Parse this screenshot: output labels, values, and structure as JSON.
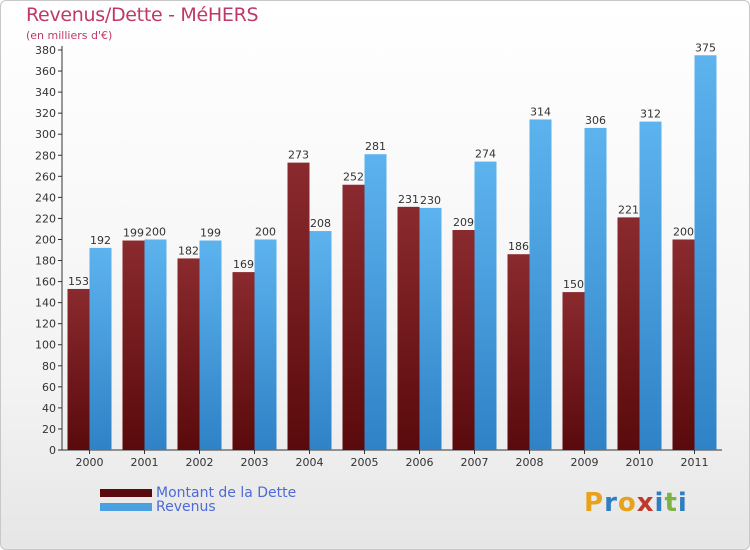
{
  "header": {
    "title": "Revenus/Dette - MéHERS",
    "subtitle": "(en milliers d'€)"
  },
  "legend": {
    "debt_label": "Montant de la Dette",
    "revenue_label": "Revenus"
  },
  "logo": {
    "letters": [
      "P",
      "r",
      "o",
      "x",
      "i",
      "t",
      "i"
    ],
    "colors": [
      "#e8a11a",
      "#2f7ec1",
      "#e8a11a",
      "#c0392b",
      "#2f7ec1",
      "#7cb342",
      "#2f7ec1"
    ]
  },
  "colors": {
    "debt": "#7a1418",
    "revenue": "#4aa0e0"
  },
  "chart_data": {
    "type": "bar",
    "title": "Revenus/Dette - MéHERS",
    "subtitle": "(en milliers d'€)",
    "categories": [
      "2000",
      "2001",
      "2002",
      "2003",
      "2004",
      "2005",
      "2006",
      "2007",
      "2008",
      "2009",
      "2010",
      "2011"
    ],
    "series": [
      {
        "name": "Montant de la Dette",
        "values": [
          153,
          199,
          182,
          169,
          273,
          252,
          231,
          209,
          186,
          150,
          221,
          200
        ]
      },
      {
        "name": "Revenus",
        "values": [
          192,
          200,
          199,
          200,
          208,
          281,
          230,
          274,
          314,
          306,
          312,
          375
        ]
      }
    ],
    "ylim": [
      0,
      380
    ],
    "ytick_step": 20,
    "grid": false,
    "legend_position": "bottom-left"
  }
}
